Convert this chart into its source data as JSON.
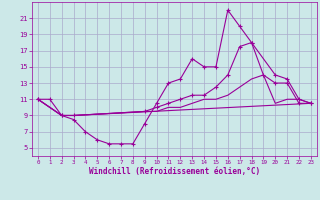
{
  "xlabel": "Windchill (Refroidissement éolien,°C)",
  "bg_color": "#cce8e8",
  "grid_color": "#aaaacc",
  "line_color": "#990099",
  "xlim": [
    -0.5,
    23.5
  ],
  "ylim": [
    4,
    23
  ],
  "xticks": [
    0,
    1,
    2,
    3,
    4,
    5,
    6,
    7,
    8,
    9,
    10,
    11,
    12,
    13,
    14,
    15,
    16,
    17,
    18,
    19,
    20,
    21,
    22,
    23
  ],
  "yticks": [
    5,
    7,
    9,
    11,
    13,
    15,
    17,
    19,
    21
  ],
  "line1_x": [
    0,
    1,
    2,
    3,
    4,
    5,
    6,
    7,
    8,
    9,
    10,
    11,
    12,
    13,
    14,
    15,
    16,
    17,
    18,
    19,
    20,
    21,
    22,
    23
  ],
  "line1_y": [
    11,
    11,
    9,
    8.5,
    7,
    6,
    5.5,
    5.5,
    5.5,
    8,
    10.5,
    13,
    13.5,
    16,
    15,
    15,
    22,
    20,
    18,
    14,
    13,
    13,
    10.5,
    10.5
  ],
  "line2_x": [
    0,
    2,
    3,
    9,
    10,
    11,
    12,
    13,
    14,
    15,
    16,
    17,
    18,
    20,
    21,
    22,
    23
  ],
  "line2_y": [
    11,
    9,
    9,
    9.5,
    10,
    10.5,
    11,
    11.5,
    11.5,
    12.5,
    14,
    17.5,
    18,
    14,
    13.5,
    11,
    10.5
  ],
  "line3_x": [
    0,
    2,
    3,
    23
  ],
  "line3_y": [
    11,
    9,
    9,
    10.5
  ],
  "line4_x": [
    0,
    2,
    3,
    9,
    10,
    11,
    12,
    13,
    14,
    15,
    16,
    17,
    18,
    19,
    20,
    21,
    22,
    23
  ],
  "line4_y": [
    11,
    9,
    9,
    9.5,
    9.5,
    10,
    10,
    10.5,
    11,
    11,
    11.5,
    12.5,
    13.5,
    14,
    10.5,
    11,
    11,
    10.5
  ]
}
